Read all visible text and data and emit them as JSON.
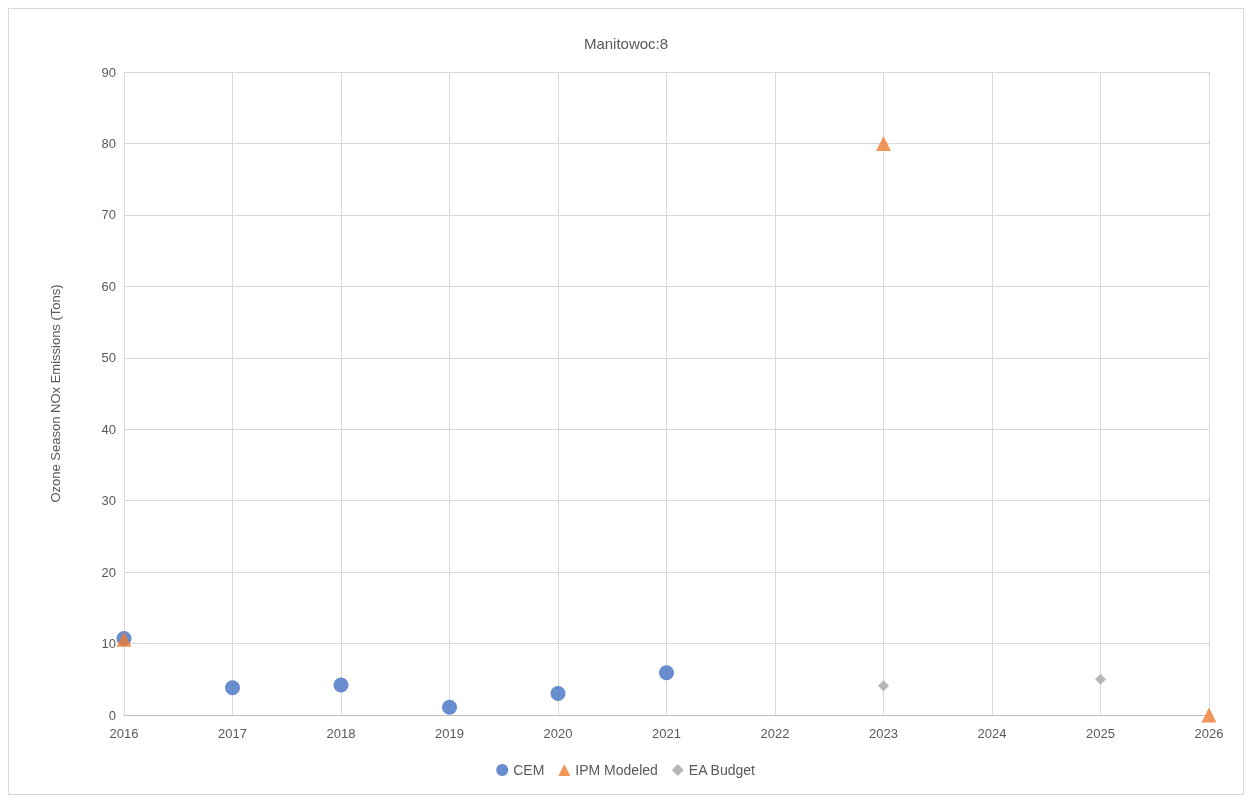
{
  "chart_data": {
    "type": "scatter",
    "title": "Manitowoc:8",
    "ylabel": "Ozone Season NOx Emissions (Tons)",
    "xlim": [
      2016,
      2026
    ],
    "xticks": [
      2016,
      2017,
      2018,
      2019,
      2020,
      2021,
      2022,
      2023,
      2024,
      2025,
      2026
    ],
    "ylim": [
      0,
      90
    ],
    "yticks": [
      0,
      10,
      20,
      30,
      40,
      50,
      60,
      70,
      80,
      90
    ],
    "grid": true,
    "legend": "bottom",
    "series": [
      {
        "name": "CEM",
        "color": "#4472c4",
        "marker": "circle",
        "x": [
          2016,
          2017,
          2018,
          2019,
          2020,
          2021
        ],
        "values": [
          10.7,
          3.8,
          4.2,
          1.1,
          3.0,
          5.9
        ]
      },
      {
        "name": "IPM Modeled",
        "color": "#ed7d31",
        "marker": "triangle",
        "x": [
          2016,
          2023,
          2026
        ],
        "values": [
          10.6,
          80,
          0
        ]
      },
      {
        "name": "EA Budget",
        "color": "#a5a5a5",
        "marker": "diamond",
        "x": [
          2023,
          2025
        ],
        "values": [
          4.1,
          5.0
        ]
      }
    ]
  }
}
